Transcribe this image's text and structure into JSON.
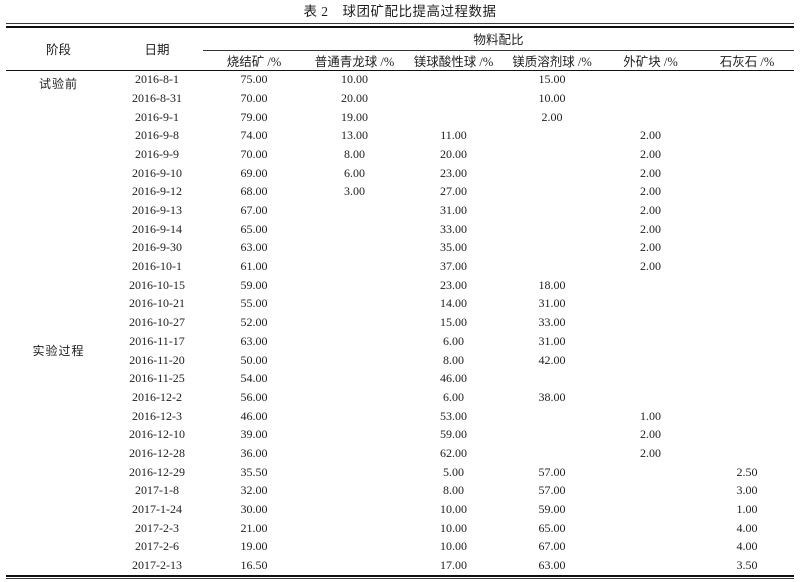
{
  "title": "表 2　球团矿配比提高过程数据",
  "table": {
    "header": {
      "stage": "阶段",
      "date": "日期",
      "group": "物料配比",
      "columns": [
        "烧结矿 /%",
        "普通青龙球 /%",
        "镁球酸性球 /%",
        "镁质溶剂球 /%",
        "外矿块 /%",
        "石灰石 /%"
      ]
    },
    "stages": [
      {
        "label": "试验前",
        "row_start": 0,
        "row_count": 3,
        "align": "top"
      },
      {
        "label": "实验过程",
        "row_start": 3,
        "row_count": 24,
        "align": "middle"
      }
    ],
    "rows": [
      {
        "date": "2016-8-1",
        "values": [
          "75.00",
          "10.00",
          "",
          "15.00",
          "",
          ""
        ]
      },
      {
        "date": "2016-8-31",
        "values": [
          "70.00",
          "20.00",
          "",
          "10.00",
          "",
          ""
        ]
      },
      {
        "date": "2016-9-1",
        "values": [
          "79.00",
          "19.00",
          "",
          "2.00",
          "",
          ""
        ]
      },
      {
        "date": "2016-9-8",
        "values": [
          "74.00",
          "13.00",
          "11.00",
          "",
          "2.00",
          ""
        ]
      },
      {
        "date": "2016-9-9",
        "values": [
          "70.00",
          "8.00",
          "20.00",
          "",
          "2.00",
          ""
        ]
      },
      {
        "date": "2016-9-10",
        "values": [
          "69.00",
          "6.00",
          "23.00",
          "",
          "2.00",
          ""
        ]
      },
      {
        "date": "2016-9-12",
        "values": [
          "68.00",
          "3.00",
          "27.00",
          "",
          "2.00",
          ""
        ]
      },
      {
        "date": "2016-9-13",
        "values": [
          "67.00",
          "",
          "31.00",
          "",
          "2.00",
          ""
        ]
      },
      {
        "date": "2016-9-14",
        "values": [
          "65.00",
          "",
          "33.00",
          "",
          "2.00",
          ""
        ]
      },
      {
        "date": "2016-9-30",
        "values": [
          "63.00",
          "",
          "35.00",
          "",
          "2.00",
          ""
        ]
      },
      {
        "date": "2016-10-1",
        "values": [
          "61.00",
          "",
          "37.00",
          "",
          "2.00",
          ""
        ]
      },
      {
        "date": "2016-10-15",
        "values": [
          "59.00",
          "",
          "23.00",
          "18.00",
          "",
          ""
        ]
      },
      {
        "date": "2016-10-21",
        "values": [
          "55.00",
          "",
          "14.00",
          "31.00",
          "",
          ""
        ]
      },
      {
        "date": "2016-10-27",
        "values": [
          "52.00",
          "",
          "15.00",
          "33.00",
          "",
          ""
        ]
      },
      {
        "date": "2016-11-17",
        "values": [
          "63.00",
          "",
          "6.00",
          "31.00",
          "",
          ""
        ]
      },
      {
        "date": "2016-11-20",
        "values": [
          "50.00",
          "",
          "8.00",
          "42.00",
          "",
          ""
        ]
      },
      {
        "date": "2016-11-25",
        "values": [
          "54.00",
          "",
          "46.00",
          "",
          "",
          ""
        ]
      },
      {
        "date": "2016-12-2",
        "values": [
          "56.00",
          "",
          "6.00",
          "38.00",
          "",
          ""
        ]
      },
      {
        "date": "2016-12-3",
        "values": [
          "46.00",
          "",
          "53.00",
          "",
          "1.00",
          ""
        ]
      },
      {
        "date": "2016-12-10",
        "values": [
          "39.00",
          "",
          "59.00",
          "",
          "2.00",
          ""
        ]
      },
      {
        "date": "2016-12-28",
        "values": [
          "36.00",
          "",
          "62.00",
          "",
          "2.00",
          ""
        ]
      },
      {
        "date": "2016-12-29",
        "values": [
          "35.50",
          "",
          "5.00",
          "57.00",
          "",
          "2.50"
        ]
      },
      {
        "date": "2017-1-8",
        "values": [
          "32.00",
          "",
          "8.00",
          "57.00",
          "",
          "3.00"
        ]
      },
      {
        "date": "2017-1-24",
        "values": [
          "30.00",
          "",
          "10.00",
          "59.00",
          "",
          "1.00"
        ]
      },
      {
        "date": "2017-2-3",
        "values": [
          "21.00",
          "",
          "10.00",
          "65.00",
          "",
          "4.00"
        ]
      },
      {
        "date": "2017-2-6",
        "values": [
          "19.00",
          "",
          "10.00",
          "67.00",
          "",
          "4.00"
        ]
      },
      {
        "date": "2017-2-13",
        "values": [
          "16.50",
          "",
          "17.00",
          "63.00",
          "",
          "3.50"
        ]
      }
    ]
  }
}
